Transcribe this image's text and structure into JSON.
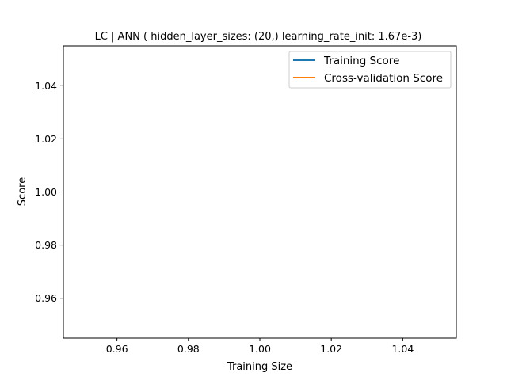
{
  "chart_data": {
    "type": "line",
    "title": "LC | ANN ( hidden_layer_sizes: (20,) learning_rate_init: 1.67e-3)",
    "xlabel": "Training Size",
    "ylabel": "Score",
    "xlim": [
      0.945,
      1.055
    ],
    "ylim": [
      0.945,
      1.055
    ],
    "xticks": [
      "0.96",
      "0.98",
      "1.00",
      "1.02",
      "1.04"
    ],
    "xtick_values": [
      0.96,
      0.98,
      1.0,
      1.02,
      1.04
    ],
    "yticks": [
      "0.96",
      "0.98",
      "1.00",
      "1.02",
      "1.04"
    ],
    "ytick_values": [
      0.96,
      0.98,
      1.0,
      1.02,
      1.04
    ],
    "grid": false,
    "legend_position": "top-right",
    "series": [
      {
        "name": "Training Score",
        "color": "#1f77b4",
        "x": [],
        "y": []
      },
      {
        "name": "Cross-validation Score",
        "color": "#ff7f0e",
        "x": [],
        "y": []
      }
    ]
  }
}
